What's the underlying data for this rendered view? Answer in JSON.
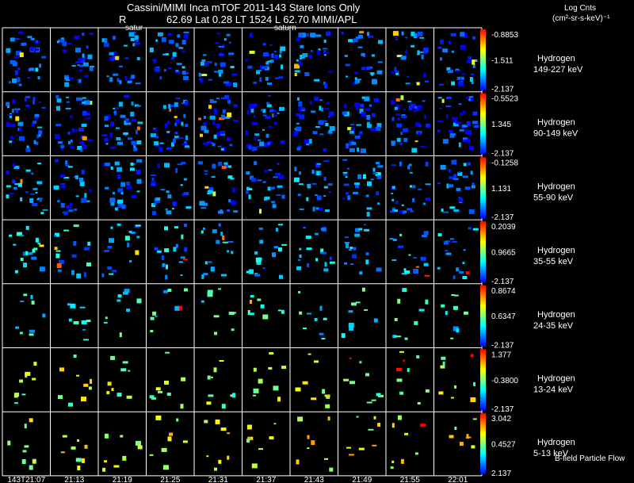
{
  "header": {
    "title": "Cassini/MIMI Inca mTOF  2011-143    Stare    Ions Only",
    "line2_r": "R",
    "line2_rest": "62.69  Lat 0.28  LT 1524  L           62.70   MIMI/APL",
    "label_left": "satur",
    "label_right": "saturn",
    "units_title": "Log Cnts",
    "units": "(cm²-sr-s-keV)⁻¹"
  },
  "footer": {
    "flow_label": "B-field Particle Flow"
  },
  "colors": {
    "background": "#000000",
    "grid": "#ffffff",
    "colorbar": [
      "#ff0000",
      "#ff8000",
      "#ffff00",
      "#80ff80",
      "#00ffff",
      "#0080ff",
      "#0000ff"
    ]
  },
  "chart_data": {
    "type": "heatmap",
    "time_labels": [
      "143T21:07",
      "21:13",
      "21:19",
      "21:25",
      "21:31",
      "21:37",
      "21:43",
      "21:49",
      "21:55",
      "22:01"
    ],
    "channels": [
      {
        "species": "Hydrogen",
        "energy": "149-227 keV",
        "cb_max": "-0.8853",
        "cb_mid": "-1.511",
        "cb_min": "-2.137",
        "density": 0.34,
        "mid_level": 0.12
      },
      {
        "species": "Hydrogen",
        "energy": "90-149 keV",
        "cb_max": "-0.5523",
        "cb_mid": "1.345",
        "cb_min": "-2.137",
        "density": 0.42,
        "mid_level": 0.1
      },
      {
        "species": "Hydrogen",
        "energy": "55-90 keV",
        "cb_max": "-0.1258",
        "cb_mid": "1.131",
        "cb_min": "-2.137",
        "density": 0.3,
        "mid_level": 0.16
      },
      {
        "species": "Hydrogen",
        "energy": "35-55 keV",
        "cb_max": "0.2039",
        "cb_mid": "0.9665",
        "cb_min": "-2.137",
        "density": 0.2,
        "mid_level": 0.24
      },
      {
        "species": "Hydrogen",
        "energy": "24-35 keV",
        "cb_max": "0.8674",
        "cb_mid": "0.6347",
        "cb_min": "-2.137",
        "density": 0.1,
        "mid_level": 0.34
      },
      {
        "species": "Hydrogen",
        "energy": "13-24 keV",
        "cb_max": "1.377",
        "cb_mid": "-0.3800",
        "cb_min": "-2.137",
        "density": 0.1,
        "mid_level": 0.55
      },
      {
        "species": "Hydrogen",
        "energy": "5-13 keV",
        "cb_max": "3.042",
        "cb_mid": "0.4527",
        "cb_min": "2.137",
        "density": 0.09,
        "mid_level": 0.62
      }
    ]
  }
}
